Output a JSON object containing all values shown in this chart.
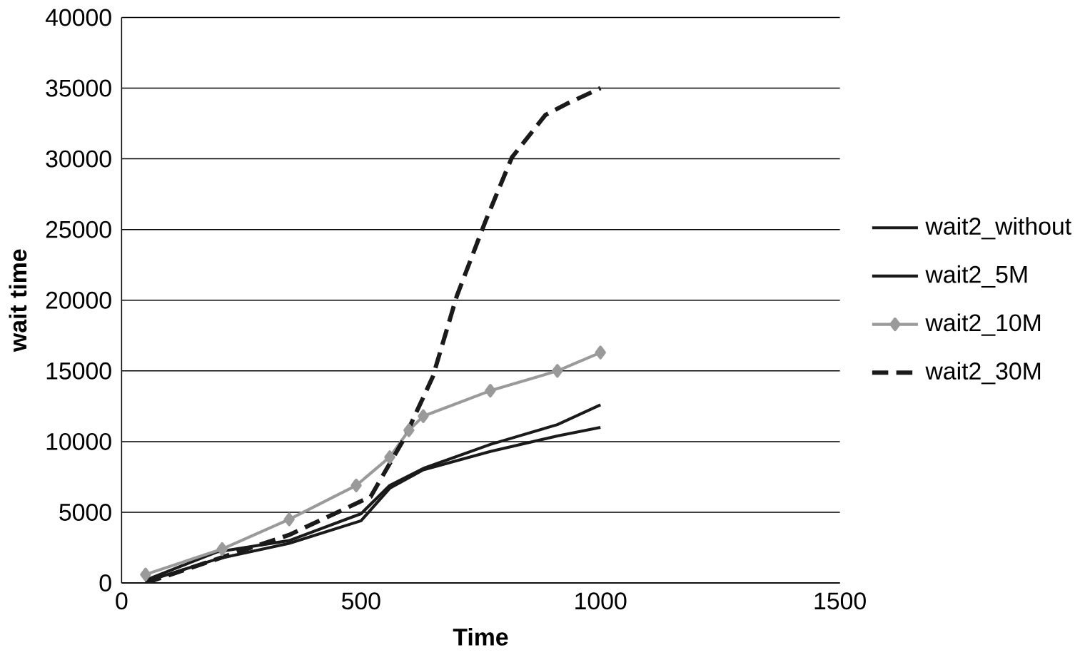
{
  "chart_data": {
    "type": "line",
    "xlabel": "Time",
    "ylabel": "wait time",
    "xlim": [
      0,
      1500
    ],
    "xticks": [
      0,
      500,
      1000,
      1500
    ],
    "ylim": [
      0,
      40000
    ],
    "yticks": [
      0,
      5000,
      10000,
      15000,
      20000,
      25000,
      30000,
      35000,
      40000
    ],
    "grid": "y",
    "legend": "right",
    "series": [
      {
        "name": "wait2_without",
        "color": "#1a1a1a",
        "line_style": "solid",
        "marker": "none",
        "x": [
          50,
          200,
          350,
          500,
          560,
          630,
          770,
          910,
          1000
        ],
        "values": [
          100,
          1700,
          2800,
          4400,
          6700,
          8000,
          9300,
          10400,
          11000
        ]
      },
      {
        "name": "wait2_5M",
        "color": "#1a1a1a",
        "line_style": "solid",
        "marker": "none",
        "x": [
          50,
          200,
          350,
          500,
          560,
          630,
          770,
          910,
          1000
        ],
        "values": [
          200,
          2200,
          3000,
          4900,
          6900,
          8100,
          9800,
          11200,
          12600
        ]
      },
      {
        "name": "wait2_10M",
        "color": "#9a9a9a",
        "line_style": "solid",
        "marker": "diamond",
        "x": [
          50,
          210,
          350,
          490,
          560,
          600,
          630,
          770,
          910,
          1000
        ],
        "values": [
          600,
          2400,
          4500,
          6900,
          8900,
          10800,
          11800,
          13600,
          15000,
          16300
        ]
      },
      {
        "name": "wait2_30M",
        "color": "#1a1a1a",
        "line_style": "dashed",
        "marker": "none",
        "x": [
          50,
          350,
          520,
          590,
          650,
          700,
          760,
          815,
          885,
          930,
          1000
        ],
        "values": [
          0,
          3400,
          6100,
          10200,
          14600,
          20300,
          25600,
          30100,
          33100,
          33900,
          35000
        ]
      }
    ]
  }
}
